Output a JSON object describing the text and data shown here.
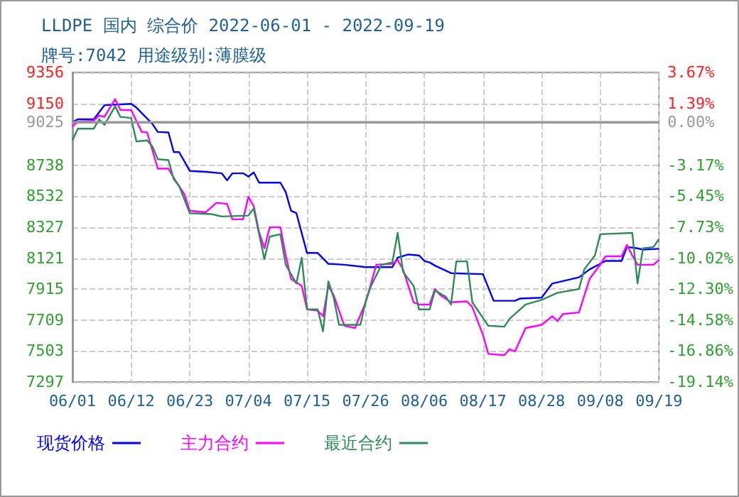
{
  "chart_data": {
    "type": "line",
    "title": "LLDPE 国内 综合价 2022-06-01 - 2022-09-19",
    "subtitle": "牌号:7042 用途级别:薄膜级",
    "xlim": [
      "2022-06-01",
      "2022-09-19"
    ],
    "xticks": [
      {
        "value": "2022-06-01",
        "label": "06/01"
      },
      {
        "value": "2022-06-12",
        "label": "06/12"
      },
      {
        "value": "2022-06-23",
        "label": "06/23"
      },
      {
        "value": "2022-07-04",
        "label": "07/04"
      },
      {
        "value": "2022-07-15",
        "label": "07/15"
      },
      {
        "value": "2022-07-26",
        "label": "07/26"
      },
      {
        "value": "2022-08-06",
        "label": "08/06"
      },
      {
        "value": "2022-08-17",
        "label": "08/17"
      },
      {
        "value": "2022-08-28",
        "label": "08/28"
      },
      {
        "value": "2022-09-08",
        "label": "09/08"
      },
      {
        "value": "2022-09-19",
        "label": "09/19"
      }
    ],
    "ylim": [
      7297,
      9356
    ],
    "yticks": [
      7297,
      7503,
      7709,
      7915,
      8121,
      8327,
      8532,
      8738,
      9025,
      9150,
      9356
    ],
    "y2lim": [
      -19.14,
      3.67
    ],
    "y2ticks": [
      {
        "value": -19.14,
        "label": "-19.14%"
      },
      {
        "value": -16.86,
        "label": "-16.86%"
      },
      {
        "value": -14.58,
        "label": "-14.58%"
      },
      {
        "value": -12.3,
        "label": "-12.30%"
      },
      {
        "value": -10.02,
        "label": "-10.02%"
      },
      {
        "value": -7.73,
        "label": "-7.73%"
      },
      {
        "value": -5.45,
        "label": "-5.45%"
      },
      {
        "value": -3.17,
        "label": "-3.17%"
      },
      {
        "value": 0,
        "label": "0.00%"
      },
      {
        "value": 1.39,
        "label": "1.39%"
      },
      {
        "value": 3.67,
        "label": "3.67%"
      }
    ],
    "ref_lines": [
      {
        "axis": "y",
        "value": 9025,
        "color": "#999999"
      }
    ],
    "grid": true,
    "legend": "bottom left",
    "series": [
      {
        "name": "现货价格",
        "color": "#0000ff",
        "x": [
          "2022-06-01",
          "2022-06-02",
          "2022-06-05",
          "2022-06-07",
          "2022-06-12",
          "2022-06-13",
          "2022-06-16",
          "2022-06-17",
          "2022-06-19",
          "2022-06-20",
          "2022-06-21",
          "2022-06-23",
          "2022-06-26",
          "2022-06-29",
          "2022-06-30",
          "2022-07-01",
          "2022-07-03",
          "2022-07-04",
          "2022-07-05",
          "2022-07-06",
          "2022-07-10",
          "2022-07-11",
          "2022-07-12",
          "2022-07-13",
          "2022-07-15",
          "2022-07-17",
          "2022-07-19",
          "2022-07-22",
          "2022-07-26",
          "2022-07-31",
          "2022-08-01",
          "2022-08-03",
          "2022-08-05",
          "2022-08-06",
          "2022-08-07",
          "2022-08-08",
          "2022-08-11",
          "2022-08-17",
          "2022-08-19",
          "2022-08-23",
          "2022-08-24",
          "2022-08-28",
          "2022-08-30",
          "2022-09-04",
          "2022-09-06",
          "2022-09-09",
          "2022-09-12",
          "2022-09-13",
          "2022-09-15",
          "2022-09-16",
          "2022-09-19"
        ],
        "values": [
          9025,
          9044,
          9044,
          9138,
          9147,
          9122,
          9013,
          8960,
          8957,
          8826,
          8826,
          8701,
          8695,
          8685,
          8638,
          8685,
          8685,
          8663,
          8691,
          8623,
          8623,
          8560,
          8436,
          8420,
          8155,
          8155,
          8083,
          8077,
          8061,
          8061,
          8124,
          8145,
          8139,
          8102,
          8092,
          8071,
          8021,
          8014,
          7837,
          7837,
          7852,
          7858,
          7952,
          7993,
          8046,
          8102,
          8102,
          8195,
          8186,
          8177,
          8183
        ]
      },
      {
        "name": "主力合约",
        "color": "#ff00ff",
        "x": [
          "2022-06-01",
          "2022-06-02",
          "2022-06-05",
          "2022-06-06",
          "2022-06-07",
          "2022-06-09",
          "2022-06-10",
          "2022-06-12",
          "2022-06-14",
          "2022-06-15",
          "2022-06-17",
          "2022-06-19",
          "2022-06-20",
          "2022-06-22",
          "2022-06-23",
          "2022-06-26",
          "2022-06-28",
          "2022-06-30",
          "2022-07-01",
          "2022-07-03",
          "2022-07-04",
          "2022-07-05",
          "2022-07-06",
          "2022-07-07",
          "2022-07-08",
          "2022-07-10",
          "2022-07-11",
          "2022-07-12",
          "2022-07-14",
          "2022-07-15",
          "2022-07-17",
          "2022-07-18",
          "2022-07-19",
          "2022-07-20",
          "2022-07-22",
          "2022-07-24",
          "2022-07-26",
          "2022-07-28",
          "2022-07-31",
          "2022-08-01",
          "2022-08-02",
          "2022-08-04",
          "2022-08-05",
          "2022-08-07",
          "2022-08-08",
          "2022-08-09",
          "2022-08-11",
          "2022-08-14",
          "2022-08-15",
          "2022-08-17",
          "2022-08-18",
          "2022-08-21",
          "2022-08-22",
          "2022-08-23",
          "2022-08-25",
          "2022-08-28",
          "2022-08-30",
          "2022-08-31",
          "2022-09-01",
          "2022-09-04",
          "2022-09-06",
          "2022-09-08",
          "2022-09-09",
          "2022-09-12",
          "2022-09-13",
          "2022-09-14",
          "2022-09-15",
          "2022-09-18",
          "2022-09-19"
        ],
        "values": [
          8997,
          9028,
          9035,
          9069,
          9060,
          9178,
          9106,
          9106,
          8960,
          8957,
          8716,
          8716,
          8654,
          8545,
          8436,
          8426,
          8489,
          8482,
          8379,
          8379,
          8529,
          8467,
          8295,
          8186,
          8326,
          8326,
          8139,
          7983,
          7936,
          7780,
          7771,
          7734,
          7936,
          7874,
          7671,
          7656,
          7827,
          8077,
          8083,
          8108,
          8046,
          7827,
          7812,
          7812,
          7915,
          7874,
          7827,
          7833,
          7796,
          7609,
          7484,
          7475,
          7515,
          7500,
          7656,
          7677,
          7734,
          7702,
          7749,
          7759,
          7983,
          8077,
          8133,
          8133,
          8208,
          8139,
          8077,
          8077,
          8108
        ]
      },
      {
        "name": "最近合约",
        "color": "#2e8b57",
        "x": [
          "2022-06-01",
          "2022-06-02",
          "2022-06-05",
          "2022-06-06",
          "2022-06-07",
          "2022-06-09",
          "2022-06-10",
          "2022-06-12",
          "2022-06-13",
          "2022-06-15",
          "2022-06-16",
          "2022-06-17",
          "2022-06-19",
          "2022-06-20",
          "2022-06-21",
          "2022-06-23",
          "2022-06-27",
          "2022-06-29",
          "2022-07-04",
          "2022-07-05",
          "2022-07-06",
          "2022-07-07",
          "2022-07-08",
          "2022-07-10",
          "2022-07-11",
          "2022-07-13",
          "2022-07-14",
          "2022-07-15",
          "2022-07-17",
          "2022-07-18",
          "2022-07-19",
          "2022-07-20",
          "2022-07-21",
          "2022-07-25",
          "2022-07-26",
          "2022-07-27",
          "2022-07-29",
          "2022-07-31",
          "2022-08-01",
          "2022-08-02",
          "2022-08-04",
          "2022-08-05",
          "2022-08-07",
          "2022-08-08",
          "2022-08-10",
          "2022-08-11",
          "2022-08-12",
          "2022-08-14",
          "2022-08-15",
          "2022-08-18",
          "2022-08-21",
          "2022-08-22",
          "2022-08-25",
          "2022-08-28",
          "2022-08-31",
          "2022-09-04",
          "2022-09-05",
          "2022-09-07",
          "2022-09-08",
          "2022-09-14",
          "2022-09-15",
          "2022-09-16",
          "2022-09-18",
          "2022-09-19"
        ],
        "values": [
          8904,
          8982,
          8982,
          9044,
          9007,
          9131,
          9060,
          9053,
          8897,
          8904,
          8863,
          8779,
          8773,
          8645,
          8601,
          8420,
          8414,
          8398,
          8404,
          8451,
          8280,
          8114,
          8264,
          8280,
          8077,
          7952,
          8124,
          7780,
          7780,
          7634,
          7967,
          7858,
          7677,
          7677,
          7833,
          7936,
          8077,
          8092,
          8289,
          8030,
          7936,
          7780,
          7780,
          7905,
          7865,
          7812,
          8099,
          8099,
          7827,
          7671,
          7665,
          7718,
          7812,
          7843,
          7890,
          7915,
          8046,
          8139,
          8280,
          8289,
          7952,
          8186,
          8195,
          8248
        ]
      }
    ]
  }
}
